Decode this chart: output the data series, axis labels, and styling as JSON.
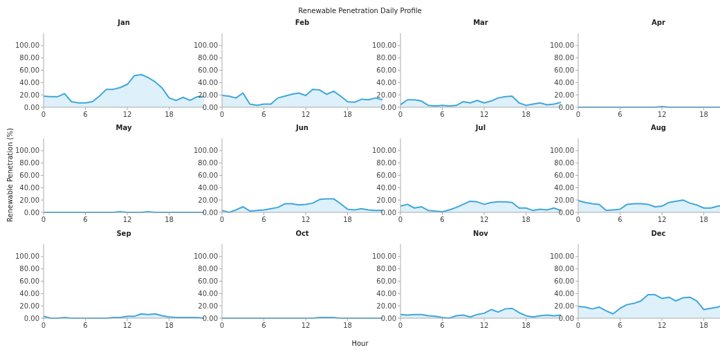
{
  "chart_data": [
    {
      "type": "area",
      "title": "Jan",
      "annotations": [
        "Renewable Penetration Daily Profile"
      ],
      "x": [
        0,
        1,
        2,
        3,
        4,
        5,
        6,
        7,
        8,
        9,
        10,
        11,
        12,
        13,
        14,
        15,
        16,
        17,
        18,
        19,
        20,
        21,
        22,
        23
      ],
      "values": [
        18,
        17,
        17,
        22,
        9,
        7,
        7,
        9,
        18,
        29,
        29,
        32,
        37,
        51,
        53,
        48,
        41,
        31,
        15,
        11,
        16,
        11,
        17,
        17
      ],
      "color": "#3ea6dc",
      "xlim": [
        0,
        23
      ],
      "xticks": [
        0,
        6,
        12,
        18
      ],
      "ylim": [
        0,
        120
      ],
      "yticks": [
        {
          "value": 0,
          "label": "0.00"
        },
        {
          "value": 20,
          "label": "20.00"
        },
        {
          "value": 40,
          "label": "40.00"
        },
        {
          "value": 60,
          "label": "60.00"
        },
        {
          "value": 80,
          "label": "80.00"
        },
        {
          "value": 100,
          "label": "100.00"
        }
      ]
    },
    {
      "type": "area",
      "title": "Feb",
      "x": [
        0,
        1,
        2,
        3,
        4,
        5,
        6,
        7,
        8,
        9,
        10,
        11,
        12,
        13,
        14,
        15,
        16,
        17,
        18,
        19,
        20,
        21,
        22,
        23
      ],
      "values": [
        19,
        18,
        15,
        23,
        5,
        3,
        5,
        5,
        15,
        18,
        21,
        23,
        19,
        29,
        28,
        21,
        26,
        18,
        9,
        8,
        13,
        12,
        15,
        12
      ],
      "color": "#3ea6dc",
      "xlim": [
        0,
        23
      ],
      "xticks": [
        0,
        6,
        12,
        18
      ],
      "ylim": [
        0,
        120
      ],
      "yticks": [
        {
          "value": 0,
          "label": "0.00"
        },
        {
          "value": 20,
          "label": "20.00"
        },
        {
          "value": 40,
          "label": "40.00"
        },
        {
          "value": 60,
          "label": "60.00"
        },
        {
          "value": 80,
          "label": "80.00"
        },
        {
          "value": 100,
          "label": "100.00"
        }
      ]
    },
    {
      "type": "area",
      "title": "Mar",
      "x": [
        0,
        1,
        2,
        3,
        4,
        5,
        6,
        7,
        8,
        9,
        10,
        11,
        12,
        13,
        14,
        15,
        16,
        17,
        18,
        19,
        20,
        21,
        22,
        23
      ],
      "values": [
        4,
        12,
        12,
        10,
        3,
        2,
        3,
        2,
        3,
        9,
        7,
        11,
        7,
        10,
        15,
        17,
        18,
        7,
        3,
        5,
        7,
        4,
        5,
        8
      ],
      "color": "#3ea6dc",
      "xlim": [
        0,
        23
      ],
      "xticks": [
        0,
        6,
        12,
        18
      ],
      "ylim": [
        0,
        120
      ],
      "yticks": [
        {
          "value": 0,
          "label": "0.00"
        },
        {
          "value": 20,
          "label": "20.00"
        },
        {
          "value": 40,
          "label": "40.00"
        },
        {
          "value": 60,
          "label": "60.00"
        },
        {
          "value": 80,
          "label": "80.00"
        },
        {
          "value": 100,
          "label": "100.00"
        }
      ]
    },
    {
      "type": "area",
      "title": "Apr",
      "x": [
        0,
        1,
        2,
        3,
        4,
        5,
        6,
        7,
        8,
        9,
        10,
        11,
        12,
        13,
        14,
        15,
        16,
        17,
        18,
        19,
        20,
        21,
        22,
        23
      ],
      "values": [
        0,
        0,
        0,
        0,
        0,
        0,
        0,
        0,
        0,
        0,
        0,
        0,
        1,
        0,
        0,
        0,
        0,
        0,
        0,
        0,
        0,
        0,
        0,
        0
      ],
      "color": "#3ea6dc",
      "xlim": [
        0,
        23
      ],
      "xticks": [
        0,
        6,
        12,
        18
      ],
      "ylim": [
        0,
        120
      ],
      "yticks": [
        {
          "value": 0,
          "label": "0.00"
        },
        {
          "value": 20,
          "label": "20.00"
        },
        {
          "value": 40,
          "label": "40.00"
        },
        {
          "value": 60,
          "label": "60.00"
        },
        {
          "value": 80,
          "label": "80.00"
        },
        {
          "value": 100,
          "label": "100.00"
        }
      ]
    },
    {
      "type": "area",
      "title": "May",
      "ylabel": "Renewable Penetration (%)",
      "x": [
        0,
        1,
        2,
        3,
        4,
        5,
        6,
        7,
        8,
        9,
        10,
        11,
        12,
        13,
        14,
        15,
        16,
        17,
        18,
        19,
        20,
        21,
        22,
        23
      ],
      "values": [
        0,
        0,
        0,
        0,
        0,
        0,
        0,
        0,
        0,
        0,
        0,
        1,
        0,
        0,
        0,
        1,
        0,
        0,
        0,
        0,
        0,
        0,
        0,
        0
      ],
      "color": "#3ea6dc",
      "xlim": [
        0,
        23
      ],
      "xticks": [
        0,
        6,
        12,
        18
      ],
      "ylim": [
        0,
        120
      ],
      "yticks": [
        {
          "value": 0,
          "label": "0.00"
        },
        {
          "value": 20,
          "label": "20.00"
        },
        {
          "value": 40,
          "label": "40.00"
        },
        {
          "value": 60,
          "label": "60.00"
        },
        {
          "value": 80,
          "label": "80.00"
        },
        {
          "value": 100,
          "label": "100.00"
        }
      ]
    },
    {
      "type": "area",
      "title": "Jun",
      "x": [
        0,
        1,
        2,
        3,
        4,
        5,
        6,
        7,
        8,
        9,
        10,
        11,
        12,
        13,
        14,
        15,
        16,
        17,
        18,
        19,
        20,
        21,
        22,
        23
      ],
      "values": [
        3,
        0,
        4,
        9,
        2,
        3,
        4,
        6,
        8,
        14,
        14,
        12,
        13,
        15,
        21,
        22,
        22,
        14,
        5,
        4,
        6,
        4,
        3,
        3
      ],
      "color": "#3ea6dc",
      "xlim": [
        0,
        23
      ],
      "xticks": [
        0,
        6,
        12,
        18
      ],
      "ylim": [
        0,
        120
      ],
      "yticks": [
        {
          "value": 0,
          "label": "0.00"
        },
        {
          "value": 20,
          "label": "20.00"
        },
        {
          "value": 40,
          "label": "40.00"
        },
        {
          "value": 60,
          "label": "60.00"
        },
        {
          "value": 80,
          "label": "80.00"
        },
        {
          "value": 100,
          "label": "100.00"
        }
      ]
    },
    {
      "type": "area",
      "title": "Jul",
      "x": [
        0,
        1,
        2,
        3,
        4,
        5,
        6,
        7,
        8,
        9,
        10,
        11,
        12,
        13,
        14,
        15,
        16,
        17,
        18,
        19,
        20,
        21,
        22,
        23
      ],
      "values": [
        10,
        13,
        7,
        9,
        3,
        2,
        1,
        4,
        8,
        13,
        18,
        17,
        13,
        16,
        17,
        17,
        16,
        7,
        7,
        3,
        5,
        4,
        7,
        3
      ],
      "color": "#3ea6dc",
      "xlim": [
        0,
        23
      ],
      "xticks": [
        0,
        6,
        12,
        18
      ],
      "ylim": [
        0,
        120
      ],
      "yticks": [
        {
          "value": 0,
          "label": "0.00"
        },
        {
          "value": 20,
          "label": "20.00"
        },
        {
          "value": 40,
          "label": "40.00"
        },
        {
          "value": 60,
          "label": "60.00"
        },
        {
          "value": 80,
          "label": "80.00"
        },
        {
          "value": 100,
          "label": "100.00"
        }
      ]
    },
    {
      "type": "area",
      "title": "Aug",
      "x": [
        0,
        1,
        2,
        3,
        4,
        5,
        6,
        7,
        8,
        9,
        10,
        11,
        12,
        13,
        14,
        15,
        16,
        17,
        18,
        19,
        20,
        21,
        22,
        23
      ],
      "values": [
        19,
        16,
        14,
        13,
        3,
        4,
        5,
        13,
        14,
        14,
        13,
        9,
        10,
        16,
        18,
        20,
        15,
        12,
        7,
        7,
        10,
        11,
        10,
        12
      ],
      "color": "#3ea6dc",
      "xlim": [
        0,
        23
      ],
      "xticks": [
        0,
        6,
        12,
        18
      ],
      "ylim": [
        0,
        120
      ],
      "yticks": [
        {
          "value": 0,
          "label": "0.00"
        },
        {
          "value": 20,
          "label": "20.00"
        },
        {
          "value": 40,
          "label": "40.00"
        },
        {
          "value": 60,
          "label": "60.00"
        },
        {
          "value": 80,
          "label": "80.00"
        },
        {
          "value": 100,
          "label": "100.00"
        }
      ]
    },
    {
      "type": "area",
      "title": "Sep",
      "x": [
        0,
        1,
        2,
        3,
        4,
        5,
        6,
        7,
        8,
        9,
        10,
        11,
        12,
        13,
        14,
        15,
        16,
        17,
        18,
        19,
        20,
        21,
        22,
        23
      ],
      "values": [
        3,
        0,
        0,
        1,
        0,
        0,
        0,
        0,
        0,
        0,
        1,
        1,
        3,
        3,
        7,
        6,
        7,
        4,
        2,
        1,
        1,
        1,
        1,
        0
      ],
      "color": "#3ea6dc",
      "xlim": [
        0,
        23
      ],
      "xticks": [
        0,
        6,
        12,
        18
      ],
      "ylim": [
        0,
        120
      ],
      "yticks": [
        {
          "value": 0,
          "label": "0.00"
        },
        {
          "value": 20,
          "label": "20.00"
        },
        {
          "value": 40,
          "label": "40.00"
        },
        {
          "value": 60,
          "label": "60.00"
        },
        {
          "value": 80,
          "label": "80.00"
        },
        {
          "value": 100,
          "label": "100.00"
        }
      ]
    },
    {
      "type": "area",
      "title": "Oct",
      "xlabel": "Hour",
      "x": [
        0,
        1,
        2,
        3,
        4,
        5,
        6,
        7,
        8,
        9,
        10,
        11,
        12,
        13,
        14,
        15,
        16,
        17,
        18,
        19,
        20,
        21,
        22,
        23
      ],
      "values": [
        0,
        0,
        0,
        0,
        0,
        0,
        0,
        0,
        0,
        0,
        0,
        0,
        0,
        0,
        1,
        1,
        1,
        0,
        0,
        0,
        0,
        0,
        0,
        0
      ],
      "color": "#3ea6dc",
      "xlim": [
        0,
        23
      ],
      "xticks": [
        0,
        6,
        12,
        18
      ],
      "ylim": [
        0,
        120
      ],
      "yticks": [
        {
          "value": 0,
          "label": "0.00"
        },
        {
          "value": 20,
          "label": "20.00"
        },
        {
          "value": 40,
          "label": "40.00"
        },
        {
          "value": 60,
          "label": "60.00"
        },
        {
          "value": 80,
          "label": "80.00"
        },
        {
          "value": 100,
          "label": "100.00"
        }
      ]
    },
    {
      "type": "area",
      "title": "Nov",
      "x": [
        0,
        1,
        2,
        3,
        4,
        5,
        6,
        7,
        8,
        9,
        10,
        11,
        12,
        13,
        14,
        15,
        16,
        17,
        18,
        19,
        20,
        21,
        22,
        23
      ],
      "values": [
        6,
        5,
        6,
        6,
        4,
        3,
        1,
        0,
        4,
        5,
        2,
        6,
        8,
        14,
        10,
        15,
        16,
        9,
        4,
        2,
        4,
        5,
        4,
        5
      ],
      "color": "#3ea6dc",
      "xlim": [
        0,
        23
      ],
      "xticks": [
        0,
        6,
        12,
        18
      ],
      "ylim": [
        0,
        120
      ],
      "yticks": [
        {
          "value": 0,
          "label": "0.00"
        },
        {
          "value": 20,
          "label": "20.00"
        },
        {
          "value": 40,
          "label": "40.00"
        },
        {
          "value": 60,
          "label": "60.00"
        },
        {
          "value": 80,
          "label": "80.00"
        },
        {
          "value": 100,
          "label": "100.00"
        }
      ]
    },
    {
      "type": "area",
      "title": "Dec",
      "x": [
        0,
        1,
        2,
        3,
        4,
        5,
        6,
        7,
        8,
        9,
        10,
        11,
        12,
        13,
        14,
        15,
        16,
        17,
        18,
        19,
        20,
        21,
        22,
        23
      ],
      "values": [
        19,
        18,
        15,
        18,
        12,
        7,
        16,
        22,
        24,
        28,
        38,
        38,
        32,
        34,
        28,
        33,
        34,
        28,
        14,
        16,
        18,
        22,
        22,
        22
      ],
      "color": "#3ea6dc",
      "xlim": [
        0,
        23
      ],
      "xticks": [
        0,
        6,
        12,
        18
      ],
      "ylim": [
        0,
        120
      ],
      "yticks": [
        {
          "value": 0,
          "label": "0.00"
        },
        {
          "value": 20,
          "label": "20.00"
        },
        {
          "value": 40,
          "label": "40.00"
        },
        {
          "value": 60,
          "label": "60.00"
        },
        {
          "value": 80,
          "label": "80.00"
        },
        {
          "value": 100,
          "label": "100.00"
        }
      ]
    }
  ]
}
